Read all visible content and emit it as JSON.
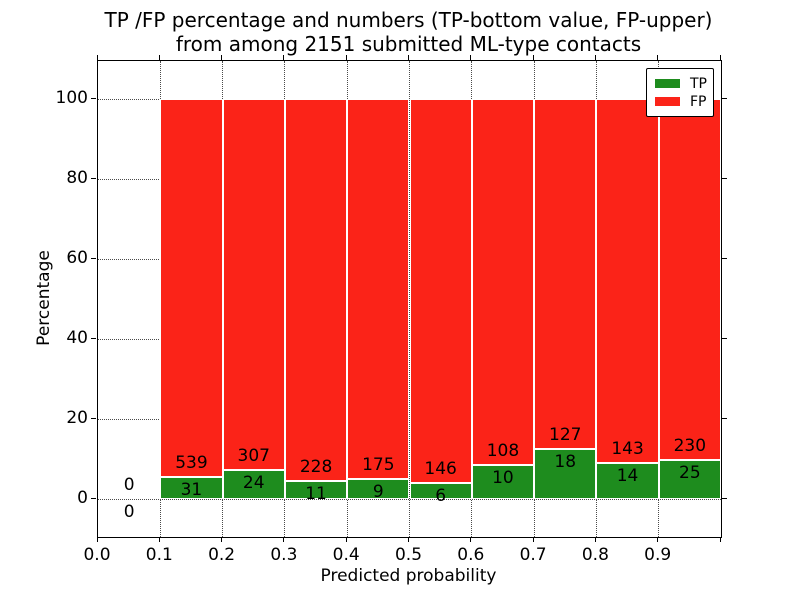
{
  "figure": {
    "title_line1": "TP /FP percentage and numbers (TP-bottom value, FP-upper)",
    "title_line2": "from among 2151 submitted ML-type contacts",
    "xlabel": "Predicted probability",
    "ylabel": "Percentage"
  },
  "legend": {
    "position": "upper-right",
    "entries": [
      {
        "label": "TP",
        "color": "#1e8c1e"
      },
      {
        "label": "FP",
        "color": "#fb2318"
      }
    ]
  },
  "chart_data": {
    "type": "bar",
    "stacked": true,
    "normalized_to": 100,
    "title": "TP /FP percentage and numbers (TP-bottom value, FP-upper) from among 2151 submitted ML-type contacts",
    "xlabel": "Predicted probability",
    "ylabel": "Percentage",
    "xlim": [
      0.0,
      1.0
    ],
    "ylim": [
      -9.5,
      109.5
    ],
    "grid": true,
    "bin_width": 0.1,
    "bin_starts": [
      0.0,
      0.1,
      0.2,
      0.3,
      0.4,
      0.5,
      0.6,
      0.7,
      0.8,
      0.9
    ],
    "xtick_labels": [
      "0.0",
      "0.1",
      "0.2",
      "0.3",
      "0.4",
      "0.5",
      "0.6",
      "0.7",
      "0.8",
      "0.9"
    ],
    "ytick_labels": [
      "0",
      "20",
      "40",
      "60",
      "80",
      "100"
    ],
    "ytick_values": [
      0,
      20,
      40,
      60,
      80,
      100
    ],
    "series": [
      {
        "name": "TP",
        "color": "#1e8c1e",
        "counts": [
          0,
          31,
          24,
          11,
          9,
          6,
          10,
          18,
          14,
          25
        ]
      },
      {
        "name": "FP",
        "color": "#fb2318",
        "counts": [
          0,
          539,
          307,
          228,
          175,
          146,
          108,
          127,
          143,
          230
        ]
      }
    ],
    "total_contacts": 2151
  }
}
